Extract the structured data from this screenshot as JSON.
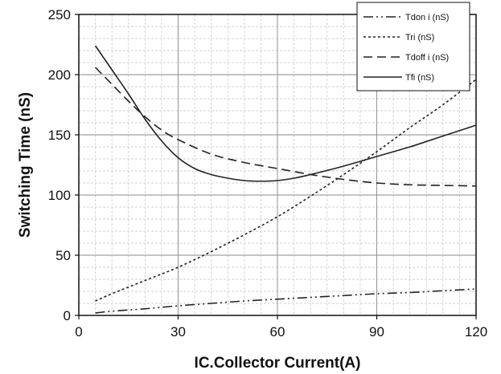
{
  "chart_data": {
    "type": "line",
    "xlabel": "IC.Collector Current(A)",
    "ylabel": "Switching Time (nS)",
    "xlim": [
      0,
      120
    ],
    "ylim": [
      0,
      250
    ],
    "x_ticks": [
      0,
      30,
      60,
      90,
      120
    ],
    "y_ticks": [
      0,
      50,
      100,
      150,
      200,
      250
    ],
    "grid": true,
    "legend_position": "top-right",
    "series": [
      {
        "name": "Tdon i (nS)",
        "dash": "dash-dot-dot",
        "color": "#222222",
        "x": [
          5,
          10,
          20,
          30,
          40,
          50,
          60,
          70,
          80,
          90,
          100,
          110,
          120
        ],
        "y": [
          2,
          3.5,
          5.5,
          8,
          10,
          12,
          13.5,
          15,
          16.5,
          18,
          19,
          20.5,
          22
        ]
      },
      {
        "name": "Tri (nS)",
        "dash": "dotted",
        "color": "#222222",
        "x": [
          5,
          10,
          20,
          30,
          40,
          50,
          60,
          70,
          80,
          90,
          100,
          110,
          120
        ],
        "y": [
          12,
          18,
          29,
          40,
          53,
          67,
          82,
          99,
          117,
          136,
          156,
          175,
          196
        ]
      },
      {
        "name": "Tdoff i (nS)",
        "dash": "dashed",
        "color": "#222222",
        "x": [
          5,
          10,
          15,
          20,
          25,
          30,
          40,
          50,
          60,
          70,
          80,
          90,
          100,
          110,
          120
        ],
        "y": [
          206,
          192,
          178,
          165,
          154,
          146,
          134,
          127,
          122,
          117,
          113,
          110,
          108.5,
          108,
          107.5
        ]
      },
      {
        "name": "Tfi (nS)",
        "dash": "solid",
        "color": "#222222",
        "x": [
          5,
          10,
          15,
          20,
          25,
          30,
          35,
          40,
          45,
          50,
          55,
          60,
          65,
          70,
          80,
          90,
          100,
          110,
          120
        ],
        "y": [
          224,
          204,
          184,
          163,
          145,
          131,
          122,
          117,
          114,
          112,
          111.5,
          112,
          114,
          117,
          124,
          132,
          140,
          149,
          158
        ]
      }
    ]
  }
}
